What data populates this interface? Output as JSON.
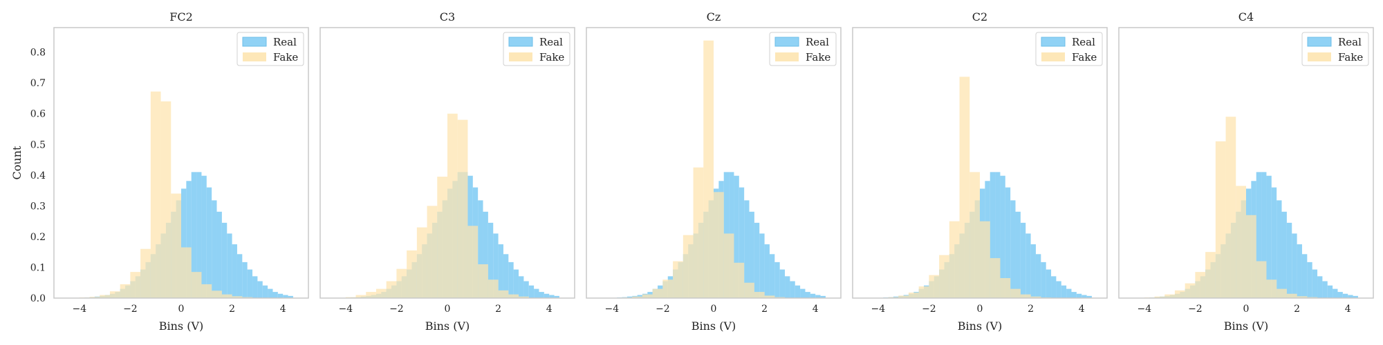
{
  "colors": {
    "real": "#7dcaf3",
    "real_edge": "#6cbde8",
    "fake": "#fde4b0",
    "frame": "#c8c8c8"
  },
  "chart_data": [
    {
      "type": "bar",
      "title": "FC2",
      "xlabel": "Bins (V)",
      "ylabel": "Count",
      "xlim": [
        -5,
        5
      ],
      "ylim": [
        0,
        0.88
      ],
      "xticks": [
        -4,
        -2,
        0,
        2,
        4
      ],
      "yticks": [
        0.0,
        0.1,
        0.2,
        0.3,
        0.4,
        0.5,
        0.6,
        0.7,
        0.8
      ],
      "grid": false,
      "legend": "top-right",
      "series": [
        {
          "name": "Real",
          "bin_start": -4,
          "bin_width": 0.2,
          "values": [
            0.001,
            0.002,
            0.003,
            0.005,
            0.007,
            0.01,
            0.014,
            0.02,
            0.03,
            0.041,
            0.055,
            0.071,
            0.093,
            0.117,
            0.143,
            0.175,
            0.21,
            0.245,
            0.281,
            0.318,
            0.356,
            0.381,
            0.41,
            0.41,
            0.398,
            0.36,
            0.318,
            0.281,
            0.245,
            0.21,
            0.175,
            0.143,
            0.117,
            0.093,
            0.071,
            0.055,
            0.041,
            0.03,
            0.02,
            0.014,
            0.01,
            0.007
          ]
        },
        {
          "name": "Fake",
          "bin_start": -4,
          "bin_width": 0.4,
          "values": [
            0.002,
            0.004,
            0.01,
            0.022,
            0.045,
            0.085,
            0.16,
            0.672,
            0.64,
            0.34,
            0.165,
            0.085,
            0.045,
            0.024,
            0.012,
            0.006,
            0.003,
            0.001
          ]
        }
      ]
    },
    {
      "type": "bar",
      "title": "C3",
      "xlabel": "Bins (V)",
      "xlim": [
        -5,
        5
      ],
      "ylim": [
        0,
        0.88
      ],
      "xticks": [
        -4,
        -2,
        0,
        2,
        4
      ],
      "grid": false,
      "legend": "top-right",
      "series": [
        {
          "name": "Real",
          "bin_start": -4,
          "bin_width": 0.2,
          "values": [
            0.001,
            0.002,
            0.003,
            0.005,
            0.007,
            0.01,
            0.014,
            0.02,
            0.03,
            0.041,
            0.055,
            0.071,
            0.093,
            0.117,
            0.143,
            0.175,
            0.21,
            0.245,
            0.281,
            0.318,
            0.356,
            0.381,
            0.41,
            0.41,
            0.398,
            0.36,
            0.318,
            0.281,
            0.245,
            0.21,
            0.175,
            0.143,
            0.117,
            0.093,
            0.071,
            0.055,
            0.041,
            0.03,
            0.02,
            0.014,
            0.01,
            0.007
          ]
        },
        {
          "name": "Fake",
          "bin_start": -4,
          "bin_width": 0.4,
          "values": [
            0.003,
            0.01,
            0.02,
            0.03,
            0.055,
            0.095,
            0.155,
            0.23,
            0.3,
            0.395,
            0.6,
            0.58,
            0.235,
            0.11,
            0.06,
            0.025,
            0.012,
            0.005
          ]
        }
      ]
    },
    {
      "type": "bar",
      "title": "Cz",
      "xlabel": "Bins (V)",
      "xlim": [
        -5,
        5
      ],
      "ylim": [
        0,
        0.88
      ],
      "xticks": [
        -4,
        -2,
        0,
        2,
        4
      ],
      "grid": false,
      "legend": "top-right",
      "series": [
        {
          "name": "Real",
          "bin_start": -4,
          "bin_width": 0.2,
          "values": [
            0.001,
            0.002,
            0.003,
            0.005,
            0.007,
            0.01,
            0.014,
            0.02,
            0.03,
            0.041,
            0.055,
            0.071,
            0.093,
            0.117,
            0.143,
            0.175,
            0.21,
            0.245,
            0.281,
            0.318,
            0.356,
            0.381,
            0.41,
            0.41,
            0.398,
            0.36,
            0.318,
            0.281,
            0.245,
            0.21,
            0.175,
            0.143,
            0.117,
            0.093,
            0.071,
            0.055,
            0.041,
            0.03,
            0.02,
            0.014,
            0.01,
            0.007
          ]
        },
        {
          "name": "Fake",
          "bin_start": -4,
          "bin_width": 0.4,
          "values": [
            0.001,
            0.002,
            0.005,
            0.012,
            0.03,
            0.06,
            0.12,
            0.205,
            0.425,
            0.838,
            0.345,
            0.21,
            0.115,
            0.05,
            0.02,
            0.008,
            0.003,
            0.001
          ]
        }
      ]
    },
    {
      "type": "bar",
      "title": "C2",
      "xlabel": "Bins (V)",
      "xlim": [
        -5,
        5
      ],
      "ylim": [
        0,
        0.88
      ],
      "xticks": [
        -4,
        -2,
        0,
        2,
        4
      ],
      "grid": false,
      "legend": "top-right",
      "series": [
        {
          "name": "Real",
          "bin_start": -4,
          "bin_width": 0.2,
          "values": [
            0.001,
            0.002,
            0.003,
            0.005,
            0.007,
            0.01,
            0.014,
            0.02,
            0.03,
            0.041,
            0.055,
            0.071,
            0.093,
            0.117,
            0.143,
            0.175,
            0.21,
            0.245,
            0.281,
            0.318,
            0.356,
            0.381,
            0.41,
            0.41,
            0.398,
            0.36,
            0.318,
            0.281,
            0.245,
            0.21,
            0.175,
            0.143,
            0.117,
            0.093,
            0.071,
            0.055,
            0.041,
            0.03,
            0.02,
            0.014,
            0.01,
            0.007
          ]
        },
        {
          "name": "Fake",
          "bin_start": -4,
          "bin_width": 0.4,
          "values": [
            0.001,
            0.003,
            0.008,
            0.018,
            0.038,
            0.075,
            0.14,
            0.25,
            0.72,
            0.41,
            0.25,
            0.13,
            0.065,
            0.03,
            0.012,
            0.005,
            0.002,
            0.001
          ]
        }
      ]
    },
    {
      "type": "bar",
      "title": "C4",
      "xlabel": "Bins (V)",
      "xlim": [
        -5,
        5
      ],
      "ylim": [
        0,
        0.88
      ],
      "xticks": [
        -4,
        -2,
        0,
        2,
        4
      ],
      "grid": false,
      "legend": "top-right",
      "series": [
        {
          "name": "Real",
          "bin_start": -4,
          "bin_width": 0.2,
          "values": [
            0.001,
            0.002,
            0.003,
            0.005,
            0.007,
            0.01,
            0.014,
            0.02,
            0.03,
            0.041,
            0.055,
            0.071,
            0.093,
            0.117,
            0.143,
            0.175,
            0.21,
            0.245,
            0.281,
            0.318,
            0.356,
            0.381,
            0.41,
            0.41,
            0.398,
            0.36,
            0.318,
            0.281,
            0.245,
            0.21,
            0.175,
            0.143,
            0.117,
            0.093,
            0.071,
            0.055,
            0.041,
            0.03,
            0.02,
            0.014,
            0.01,
            0.007
          ]
        },
        {
          "name": "Fake",
          "bin_start": -4,
          "bin_width": 0.4,
          "values": [
            0.002,
            0.005,
            0.012,
            0.025,
            0.048,
            0.085,
            0.15,
            0.51,
            0.59,
            0.365,
            0.27,
            0.12,
            0.06,
            0.03,
            0.014,
            0.006,
            0.003,
            0.001
          ]
        }
      ]
    }
  ]
}
